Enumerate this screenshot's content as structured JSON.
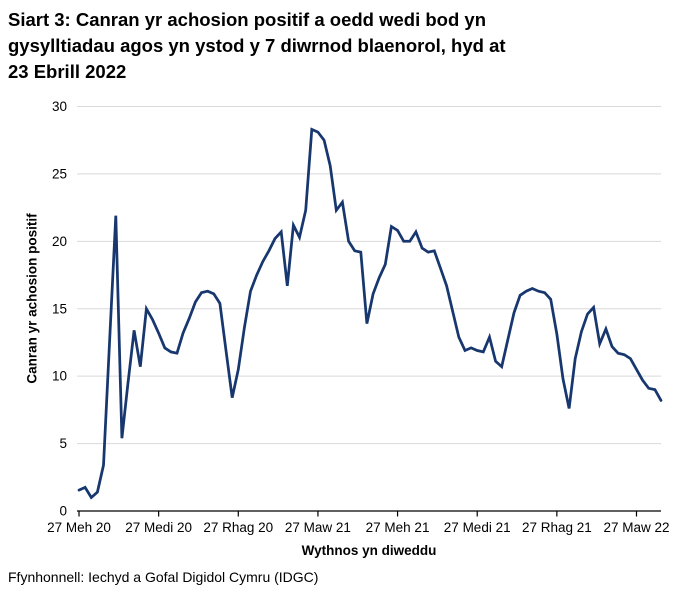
{
  "page": {
    "background": "#ffffff"
  },
  "title_lines": [
    "Siart 3: Canran yr achosion positif a oedd wedi bod yn",
    "gysylltiadau agos yn ystod y 7 diwrnod blaenorol, hyd at",
    "23 Ebrill 2022"
  ],
  "footer": "Ffynhonnell: Iechyd a Gofal Digidol Cymru (IDGC)",
  "chart_data": {
    "type": "line",
    "title": "Siart 3: Canran yr achosion positif a oedd wedi bod yn gysylltiadau agos yn ystod y 7 diwrnod blaenorol, hyd at 23 Ebrill 2022",
    "xlabel": "Wythnos yn diweddu",
    "ylabel": "Canran yr achosion positif",
    "ylim": [
      0,
      30
    ],
    "y_ticks": [
      0,
      5,
      10,
      15,
      20,
      25,
      30
    ],
    "x_tick_labels": [
      "27 Meh 20",
      "27 Medi 20",
      "27 Rhag 20",
      "27 Maw 21",
      "27 Meh 21",
      "27 Medi 21",
      "27 Rhag 21",
      "27 Maw 22"
    ],
    "x_tick_indices": [
      0,
      13,
      26,
      39,
      52,
      65,
      78,
      91
    ],
    "grid": "horizontal-only",
    "legend": "none",
    "line_color": "#17376e",
    "grid_color": "#d9d9d9",
    "axis_color": "#000000",
    "series": [
      {
        "name": "Canran yr achosion positif",
        "values": [
          1.55,
          1.75,
          1.0,
          1.4,
          3.4,
          12.6,
          21.9,
          5.4,
          9.5,
          13.4,
          10.7,
          15.0,
          14.2,
          13.2,
          12.1,
          11.8,
          11.7,
          13.2,
          14.3,
          15.5,
          16.2,
          16.3,
          16.1,
          15.4,
          11.9,
          8.4,
          10.5,
          13.6,
          16.3,
          17.5,
          18.5,
          19.3,
          20.2,
          20.7,
          16.7,
          21.2,
          20.3,
          22.3,
          28.3,
          28.1,
          27.5,
          25.6,
          22.3,
          22.9,
          20.0,
          19.3,
          19.2,
          13.9,
          16.1,
          17.3,
          18.3,
          21.1,
          20.8,
          20.0,
          20.0,
          20.7,
          19.5,
          19.2,
          19.3,
          18.0,
          16.7,
          14.8,
          12.9,
          11.9,
          12.1,
          11.9,
          11.8,
          12.9,
          11.1,
          10.7,
          12.7,
          14.7,
          16.0,
          16.3,
          16.5,
          16.3,
          16.2,
          15.7,
          13.1,
          9.8,
          7.6,
          11.3,
          13.3,
          14.6,
          15.1,
          12.4,
          13.5,
          12.2,
          11.7,
          11.6,
          11.3,
          10.5,
          9.7,
          9.1,
          9.0,
          8.2
        ]
      }
    ]
  }
}
